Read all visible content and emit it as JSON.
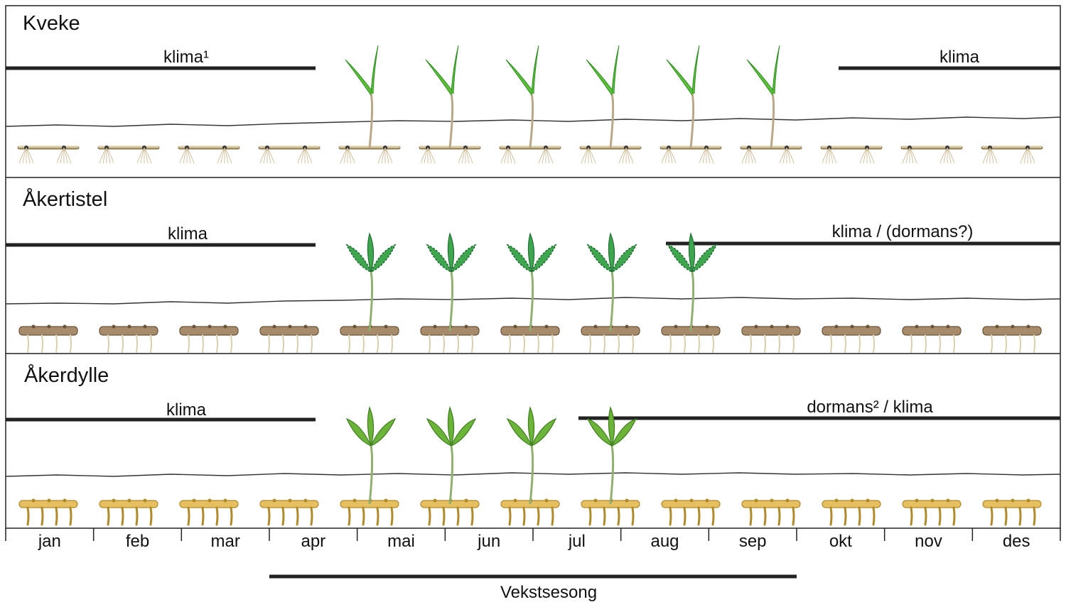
{
  "panels": [
    {
      "title": "Kveke",
      "left_label": "klima¹",
      "right_label": "klima",
      "plant_type": "grass",
      "plant_months_start": "apr",
      "plant_months_end": "sep",
      "colors": {
        "leaf": "#5cbf3a",
        "leaf_dark": "#2f8f22",
        "rhizome": "#d9c9a3",
        "rhizome_dark": "#8e7a52"
      }
    },
    {
      "title": "Åkertistel",
      "left_label": "klima",
      "right_label": "klima / (dormans?)",
      "plant_type": "thistle",
      "plant_months_start": "apr",
      "plant_months_end": "aug",
      "colors": {
        "leaf": "#3fa54f",
        "leaf_dark": "#1f6e33",
        "rhizome": "#a88b6a",
        "rhizome_dark": "#6b5338"
      }
    },
    {
      "title": "Åkerdylle",
      "left_label": "klima",
      "right_label": "dormans² / klima",
      "plant_type": "sowthistle",
      "plant_months_start": "apr",
      "plant_months_end": "jul",
      "colors": {
        "leaf": "#6cb33a",
        "leaf_dark": "#3d7d1f",
        "rhizome": "#e6c060",
        "rhizome_dark": "#b08a2a"
      }
    }
  ],
  "months": [
    "jan",
    "feb",
    "mar",
    "apr",
    "mai",
    "jun",
    "jul",
    "aug",
    "sep",
    "okt",
    "nov",
    "des"
  ],
  "season": {
    "label": "Vekstsesong",
    "start": "apr",
    "end": "okt"
  }
}
